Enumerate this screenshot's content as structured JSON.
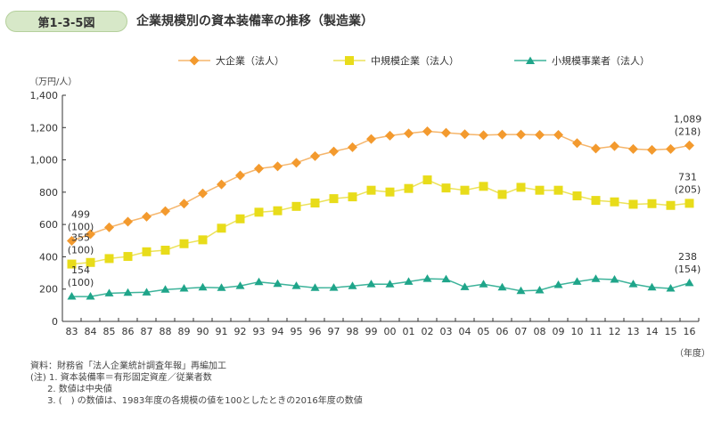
{
  "header": {
    "figure_label": "第1-3-5図",
    "title": "企業規模別の資本装備率の推移（製造業）"
  },
  "colors": {
    "large": "#f39a2e",
    "large_line": "#f5b56b",
    "medium": "#e8dc1a",
    "medium_line": "#ece25a",
    "small": "#1fa58a",
    "small_line": "#3db39a",
    "axis": "#333333",
    "badge_bg": "#d7e8c8"
  },
  "chart_data": {
    "type": "line",
    "title": "企業規模別の資本装備率の推移（製造業）",
    "ylabel": "（万円/人）",
    "xlabel": "（年度）",
    "ylim": [
      0,
      1400
    ],
    "yticks": [
      0,
      200,
      400,
      600,
      800,
      1000,
      1200,
      1400
    ],
    "ytick_labels": [
      "0",
      "200",
      "400",
      "600",
      "800",
      "1,000",
      "1,200",
      "1,400"
    ],
    "grid": false,
    "legend_position": "top",
    "categories": [
      "83",
      "84",
      "85",
      "86",
      "87",
      "88",
      "89",
      "90",
      "91",
      "92",
      "93",
      "94",
      "95",
      "96",
      "97",
      "98",
      "99",
      "00",
      "01",
      "02",
      "03",
      "04",
      "05",
      "06",
      "07",
      "08",
      "09",
      "10",
      "11",
      "12",
      "13",
      "14",
      "15",
      "16"
    ],
    "series": [
      {
        "name": "大企業（法人）",
        "marker": "diamond",
        "values": [
          499,
          540,
          582,
          617,
          648,
          683,
          729,
          792,
          848,
          904,
          946,
          960,
          982,
          1023,
          1052,
          1078,
          1129,
          1150,
          1164,
          1177,
          1168,
          1159,
          1153,
          1157,
          1157,
          1155,
          1155,
          1104,
          1070,
          1085,
          1067,
          1062,
          1067,
          1089
        ],
        "start_label": "499",
        "start_index": "(100)",
        "end_label": "1,089",
        "end_index": "(218)"
      },
      {
        "name": "中規模企業（法人）",
        "marker": "square",
        "values": [
          355,
          365,
          389,
          402,
          431,
          441,
          481,
          505,
          577,
          635,
          676,
          685,
          712,
          733,
          760,
          771,
          812,
          801,
          823,
          876,
          826,
          812,
          836,
          786,
          830,
          812,
          812,
          777,
          749,
          740,
          725,
          729,
          718,
          731
        ],
        "start_label": "355",
        "start_index": "(100)",
        "end_label": "731",
        "end_index": "(205)"
      },
      {
        "name": "小規模事業者（法人）",
        "marker": "triangle",
        "values": [
          154,
          154,
          174,
          178,
          180,
          197,
          204,
          211,
          208,
          220,
          244,
          233,
          220,
          208,
          209,
          219,
          231,
          230,
          246,
          264,
          261,
          213,
          230,
          211,
          189,
          193,
          226,
          246,
          263,
          259,
          231,
          211,
          204,
          238
        ],
        "start_label": "154",
        "start_index": "(100)",
        "end_label": "238",
        "end_index": "(154)"
      }
    ]
  },
  "notes": [
    "資料：財務省「法人企業統計調査年報」再編加工",
    "(注) 1. 資本装備率＝有形固定資産／従業者数",
    "      2. 数値は中央値",
    "      3. (　) の数値は、1983年度の各規模の値を100としたときの2016年度の数値"
  ]
}
